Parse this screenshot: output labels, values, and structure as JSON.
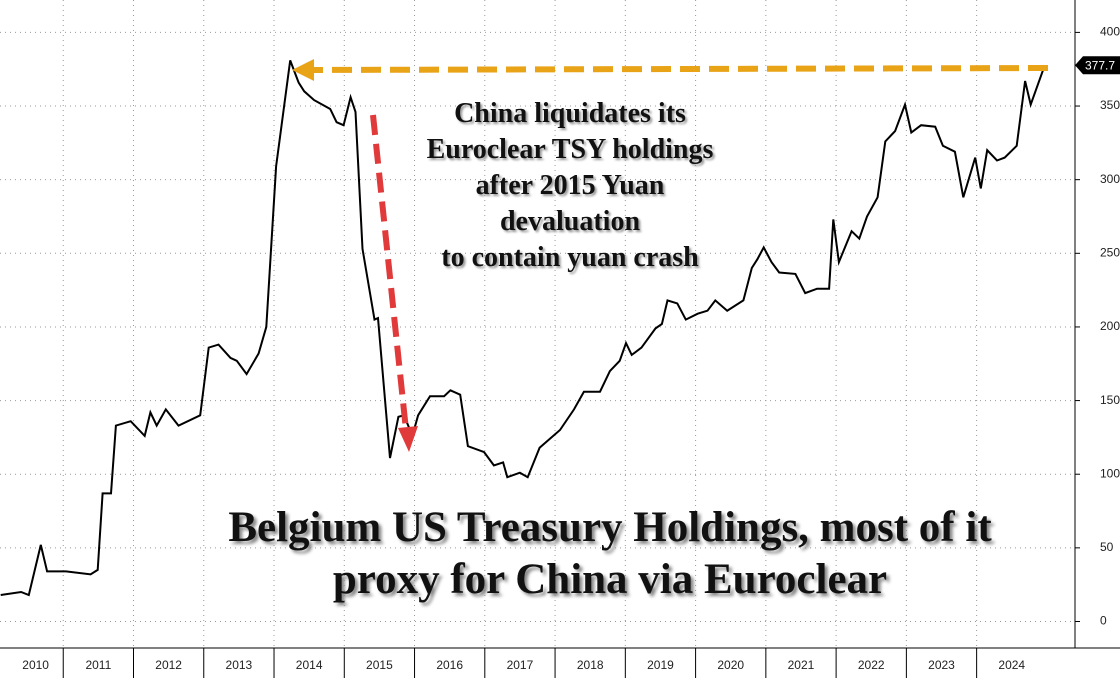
{
  "chart_data": {
    "type": "line",
    "title": "Belgium US Treasury Holdings, most of it proxy for China via Euroclear",
    "annotation": [
      "China liquidates its",
      "Euroclear TSY holdings",
      "after 2015 Yuan",
      "devaluation",
      "to contain yuan crash"
    ],
    "x": [
      2010.11,
      2010.4,
      2010.51,
      2010.68,
      2010.77,
      2011.04,
      2011.39,
      2011.49,
      2011.56,
      2011.68,
      2011.75,
      2011.96,
      2012.16,
      2012.24,
      2012.33,
      2012.46,
      2012.64,
      2012.95,
      2013.07,
      2013.21,
      2013.38,
      2013.47,
      2013.61,
      2013.78,
      2013.89,
      2014.03,
      2014.23,
      2014.35,
      2014.43,
      2014.57,
      2014.8,
      2014.89,
      2014.99,
      2015.09,
      2015.16,
      2015.26,
      2015.43,
      2015.48,
      2015.65,
      2015.77,
      2015.85,
      2015.97,
      2016.05,
      2016.22,
      2016.42,
      2016.51,
      2016.65,
      2016.76,
      2016.99,
      2017.13,
      2017.26,
      2017.32,
      2017.5,
      2017.61,
      2017.78,
      2018.07,
      2018.27,
      2018.41,
      2018.64,
      2018.78,
      2018.92,
      2019.01,
      2019.09,
      2019.23,
      2019.43,
      2019.52,
      2019.6,
      2019.74,
      2019.86,
      2020.03,
      2020.17,
      2020.28,
      2020.45,
      2020.68,
      2020.8,
      2020.88,
      2020.97,
      2021.08,
      2021.19,
      2021.42,
      2021.56,
      2021.73,
      2021.9,
      2021.96,
      2022.04,
      2022.22,
      2022.33,
      2022.44,
      2022.59,
      2022.7,
      2022.84,
      2022.98,
      2023.07,
      2023.21,
      2023.41,
      2023.52,
      2023.69,
      2023.81,
      2023.98,
      2024.06,
      2024.15,
      2024.29,
      2024.4,
      2024.57,
      2024.69,
      2024.77,
      2024.97
    ],
    "values": [
      18,
      20,
      18,
      52,
      34,
      34,
      32,
      35,
      87,
      87,
      133,
      136,
      126,
      142,
      133,
      144,
      133,
      140,
      186,
      188,
      179,
      177,
      168,
      182,
      200,
      309,
      381,
      366,
      360,
      354,
      348,
      339,
      337,
      356,
      346,
      253,
      205,
      206,
      111,
      139,
      140,
      126,
      140,
      153,
      153,
      157,
      154,
      119,
      115,
      106,
      108,
      98,
      101,
      98,
      118,
      130,
      144,
      156,
      156,
      170,
      177,
      189,
      181,
      186,
      199,
      202,
      218,
      216,
      205,
      209,
      211,
      218,
      211,
      218,
      240,
      246,
      254,
      244,
      237,
      236,
      223,
      226,
      226,
      273,
      244,
      265,
      260,
      275,
      288,
      326,
      333,
      351,
      332,
      337,
      336,
      323,
      319,
      288,
      315,
      294,
      320,
      313,
      315,
      323,
      367,
      351,
      377.7
    ],
    "color": "#000000",
    "xlim": [
      2010.1,
      2025.4
    ],
    "xticks": [
      2010,
      2011,
      2012,
      2013,
      2014,
      2015,
      2016,
      2017,
      2018,
      2019,
      2020,
      2021,
      2022,
      2023,
      2024
    ],
    "ylim": [
      -18,
      422
    ],
    "yticks": [
      0,
      50,
      100,
      150,
      200,
      250,
      300,
      350,
      400
    ],
    "grid": true
  }
}
